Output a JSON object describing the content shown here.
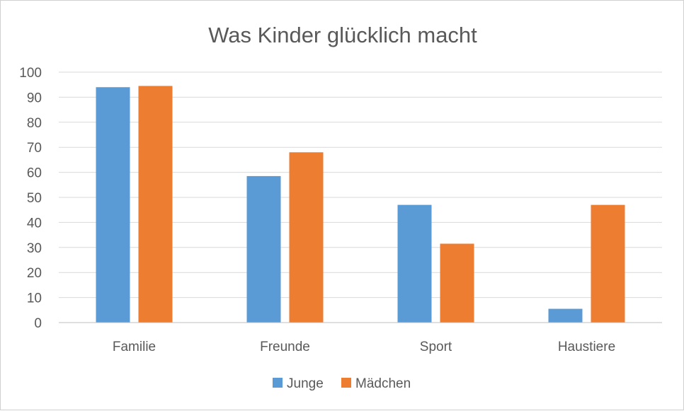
{
  "chart_data": {
    "type": "bar",
    "title": "Was Kinder glücklich macht",
    "categories": [
      "Familie",
      "Freunde",
      "Sport",
      "Haustiere"
    ],
    "series": [
      {
        "name": "Junge",
        "color": "#5b9bd5",
        "values": [
          94,
          58.5,
          47,
          5.5
        ]
      },
      {
        "name": "Mädchen",
        "color": "#ed7d31",
        "values": [
          94.5,
          68,
          31.5,
          47
        ]
      }
    ],
    "ylim": [
      0,
      100
    ],
    "yticks": [
      "0",
      "10",
      "20",
      "30",
      "40",
      "50",
      "60",
      "70",
      "80",
      "90",
      "100"
    ],
    "grid": true,
    "legend_position": "bottom"
  }
}
